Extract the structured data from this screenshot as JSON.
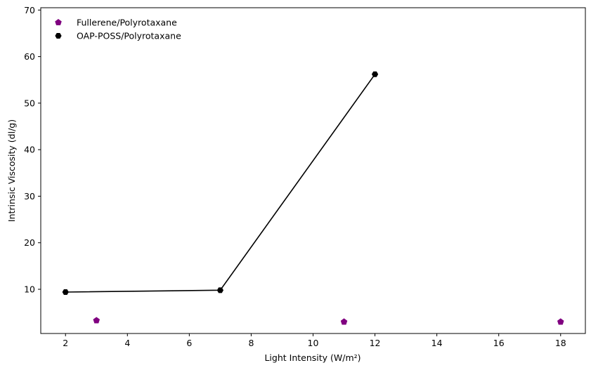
{
  "chart_data": {
    "type": "scatter",
    "xlabel": "Light Intensity (W/m²)",
    "ylabel": "Intrinsic Viscosity (dl/g)",
    "xlim": [
      1.2,
      18.8
    ],
    "ylim": [
      0.5,
      70.5
    ],
    "xticks": [
      2,
      4,
      6,
      8,
      10,
      12,
      14,
      16,
      18
    ],
    "yticks": [
      10,
      20,
      30,
      40,
      50,
      60,
      70
    ],
    "grid": false,
    "legend_position": "upper-left",
    "series": [
      {
        "name": "Fullerene/Polyrotaxane",
        "marker": "pentagon",
        "color": "#800080",
        "line": false,
        "x": [
          3,
          11,
          18
        ],
        "y": [
          3.3,
          3.0,
          3.0
        ]
      },
      {
        "name": "OAP-POSS/Polyrotaxane",
        "marker": "hexagon",
        "color": "#000000",
        "line": true,
        "x": [
          2,
          7,
          12
        ],
        "y": [
          9.4,
          9.8,
          56.2
        ]
      }
    ]
  }
}
